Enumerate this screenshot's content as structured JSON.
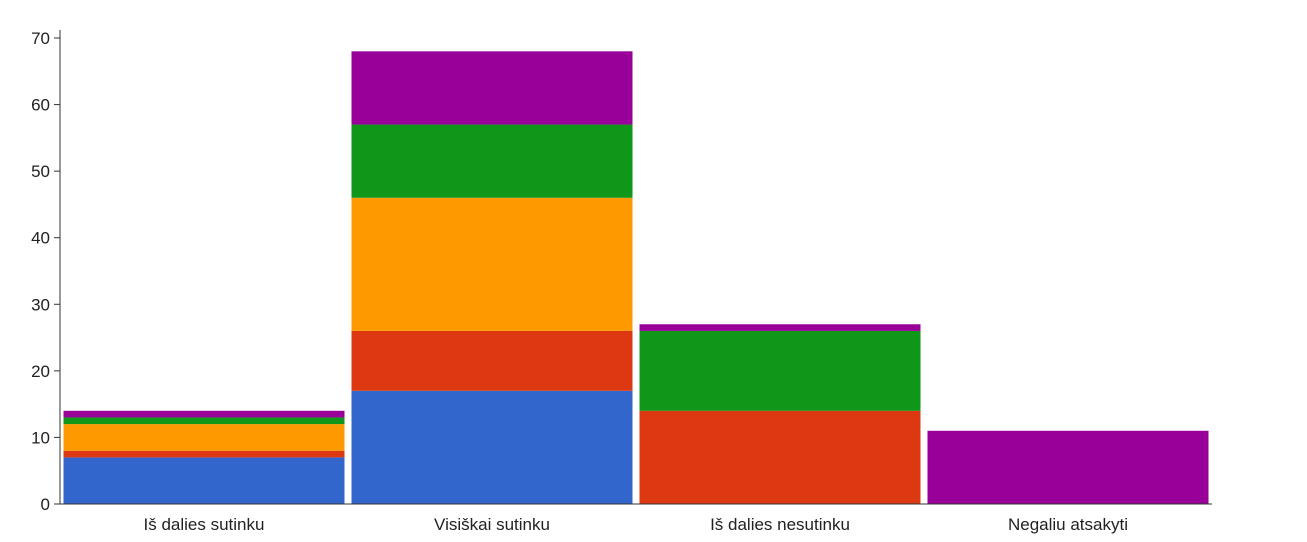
{
  "chart_data": {
    "type": "bar",
    "stacked": true,
    "categories": [
      "Iš dalies sutinku",
      "Visiškai sutinku",
      "Iš dalies nesutinku",
      "Negaliu atsakyti"
    ],
    "series": [
      {
        "values": [
          7,
          17,
          0,
          0
        ],
        "color": "#3366cc"
      },
      {
        "values": [
          1,
          9,
          14,
          0
        ],
        "color": "#dc3912"
      },
      {
        "values": [
          4,
          20,
          0,
          0
        ],
        "color": "#ff9900"
      },
      {
        "values": [
          1,
          11,
          12,
          0
        ],
        "color": "#109618"
      },
      {
        "values": [
          1,
          11,
          1,
          11
        ],
        "color": "#990099"
      }
    ],
    "ylim": [
      0,
      70
    ],
    "yticks": [
      0,
      10,
      20,
      30,
      40,
      50,
      60,
      70
    ],
    "grid": false,
    "legend": "none"
  }
}
